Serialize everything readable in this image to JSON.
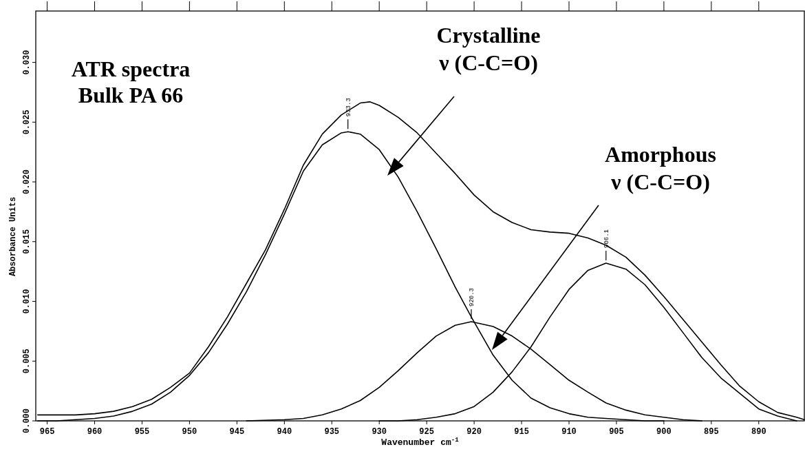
{
  "chart_data": {
    "type": "line",
    "title": "ATR spectra",
    "subtitle": "Bulk PA 66",
    "xlabel": "Wavenumber cm$^{-1}$",
    "ylabel": "Absorbance Units",
    "xlim": [
      966.2,
      885.2
    ],
    "ylim": [
      0,
      0.0343
    ],
    "xticks": [
      965,
      960,
      955,
      950,
      945,
      940,
      935,
      930,
      925,
      920,
      915,
      910,
      905,
      900,
      895,
      890
    ],
    "yticks": [
      {
        "value": 0,
        "label": "0.000"
      },
      {
        "value": 0.005,
        "label": "0.005"
      },
      {
        "value": 0.01,
        "label": "0.010"
      },
      {
        "value": 0.015,
        "label": "0.015"
      },
      {
        "value": 0.02,
        "label": "0.020"
      },
      {
        "value": 0.025,
        "label": "0.025"
      },
      {
        "value": 0.03,
        "label": "0.030"
      }
    ],
    "grid": false,
    "marker": "none",
    "line_style": "solid",
    "series": [
      {
        "color": "#000000",
        "x": [
          966,
          964,
          962,
          960,
          958,
          956,
          954,
          952,
          950,
          948,
          946,
          944,
          942,
          940,
          938,
          936,
          934,
          932,
          931,
          930,
          928,
          926,
          924,
          922,
          920,
          918,
          916,
          914,
          912,
          910,
          908,
          906.1,
          904,
          902,
          900,
          898,
          896,
          894,
          892,
          890,
          888,
          886,
          885.2
        ],
        "values": [
          0.0005,
          0.0005,
          0.0005,
          0.0006,
          0.0008,
          0.0012,
          0.0018,
          0.0028,
          0.004,
          0.0062,
          0.0087,
          0.0115,
          0.0143,
          0.0177,
          0.0214,
          0.024,
          0.0256,
          0.0266,
          0.0267,
          0.0264,
          0.0254,
          0.0241,
          0.0224,
          0.0207,
          0.0189,
          0.0175,
          0.0166,
          0.016,
          0.0158,
          0.0157,
          0.0153,
          0.0147,
          0.0137,
          0.0122,
          0.0104,
          0.0085,
          0.0066,
          0.0047,
          0.0029,
          0.0016,
          0.0007,
          0.0003,
          0.0001
        ]
      },
      {
        "color": "#000000",
        "x": [
          966,
          964,
          962,
          960,
          958,
          956,
          954,
          952,
          950,
          948,
          946,
          944,
          942,
          940,
          938,
          936,
          934,
          933.3,
          932,
          930,
          928,
          926,
          924,
          922,
          920.3,
          918,
          916,
          914,
          912,
          910,
          908,
          906.1,
          904,
          902,
          900
        ],
        "values": [
          0,
          0,
          0.0001,
          0.0002,
          0.0004,
          0.0008,
          0.0014,
          0.0024,
          0.0038,
          0.0057,
          0.0081,
          0.0108,
          0.0139,
          0.0173,
          0.0209,
          0.0231,
          0.0241,
          0.0242,
          0.024,
          0.0227,
          0.0204,
          0.0175,
          0.0144,
          0.0112,
          0.0087,
          0.0055,
          0.0034,
          0.0019,
          0.0011,
          0.0006,
          0.0003,
          0.0002,
          0.0001,
          0,
          0
        ]
      },
      {
        "color": "#000000",
        "x": [
          944,
          940,
          938,
          936,
          934,
          932,
          930,
          928,
          926,
          924,
          922,
          920.3,
          918,
          916,
          914,
          912,
          910,
          908,
          906.1,
          904,
          902,
          900,
          898,
          896
        ],
        "values": [
          0,
          0.0001,
          0.0002,
          0.0005,
          0.001,
          0.0017,
          0.0028,
          0.0042,
          0.0057,
          0.0071,
          0.008,
          0.0083,
          0.0079,
          0.0071,
          0.006,
          0.0047,
          0.0034,
          0.0024,
          0.0015,
          0.0009,
          0.0005,
          0.0003,
          0.0001,
          0
        ]
      },
      {
        "color": "#000000",
        "x": [
          930,
          928,
          926,
          924,
          922,
          920,
          918,
          916,
          914,
          912,
          910,
          908,
          906.1,
          904,
          902,
          900,
          898,
          896,
          894,
          892,
          890,
          888,
          886
        ],
        "values": [
          0,
          0,
          0.0001,
          0.0003,
          0.0006,
          0.0012,
          0.0024,
          0.0041,
          0.0062,
          0.0087,
          0.011,
          0.0126,
          0.0132,
          0.0127,
          0.0114,
          0.0095,
          0.0074,
          0.0053,
          0.0036,
          0.0023,
          0.001,
          0.0004,
          0
        ]
      }
    ],
    "annotations": [
      {
        "text": "933.3",
        "x": 933.3,
        "y": 0.0242
      },
      {
        "text": "920.3",
        "x": 920.3,
        "y": 0.0083
      },
      {
        "text": "906.1",
        "x": 906.1,
        "y": 0.0132
      },
      "Crystalline\nν (C-C=O)",
      "Amorphous\nν (C-C=O)"
    ]
  }
}
